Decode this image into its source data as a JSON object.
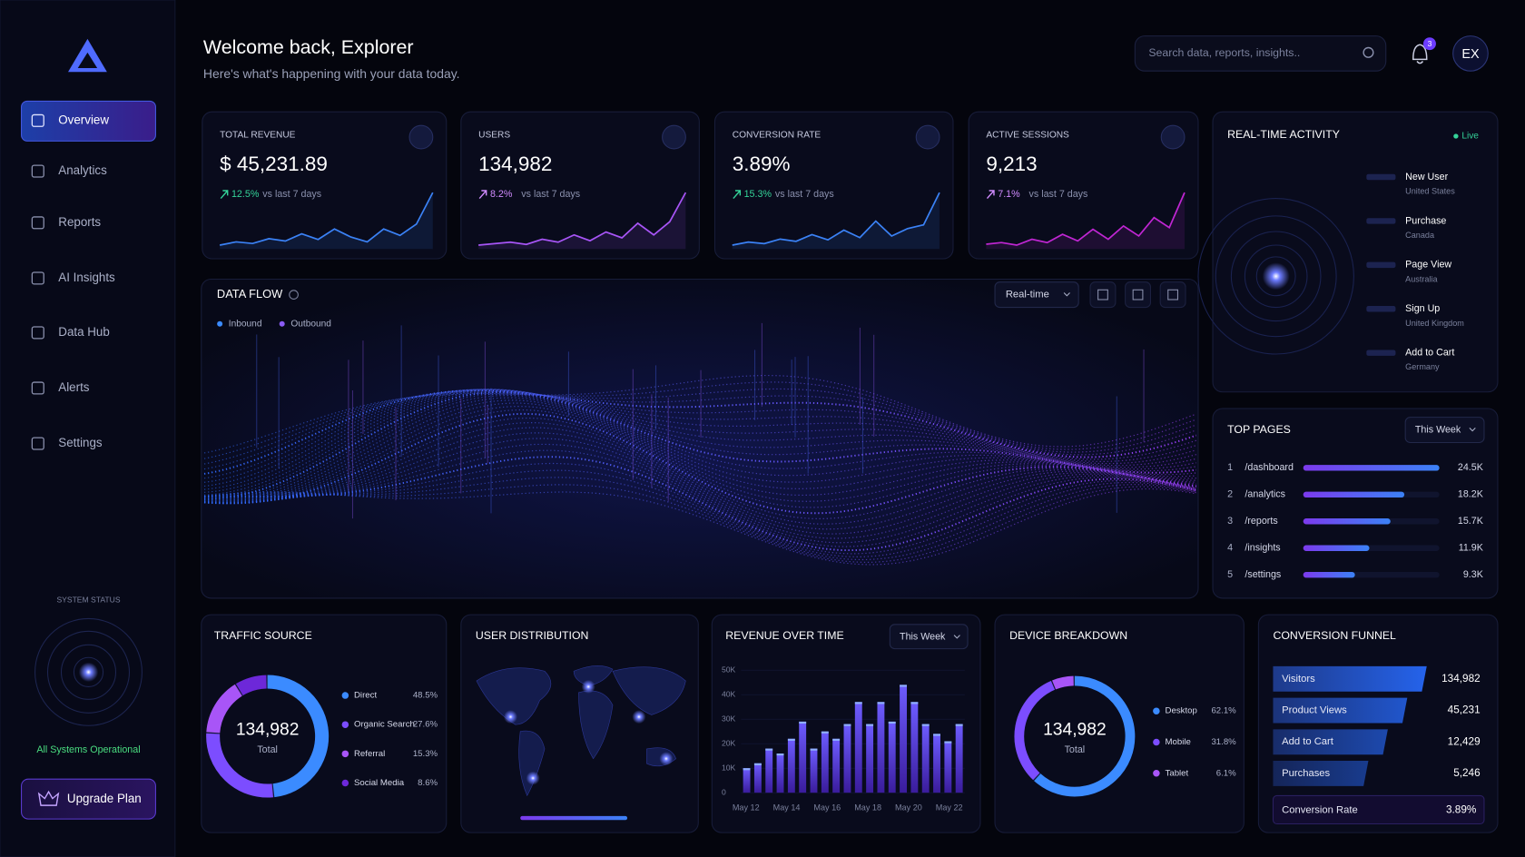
{
  "sidebar": {
    "nav": [
      "Overview",
      "Analytics",
      "Reports",
      "AI Insights",
      "Data Hub",
      "Alerts",
      "Settings"
    ],
    "status_title": "SYSTEM STATUS",
    "status_text": "All Systems Operational",
    "upgrade_button": "Upgrade Plan"
  },
  "header": {
    "title": "Welcome back, Explorer",
    "subtitle": "Here's what's happening with your data today.",
    "search_placeholder": "Search data, reports, insights..",
    "notification_count": "3",
    "avatar": "EX"
  },
  "kpis": [
    {
      "label": "TOTAL REVENUE",
      "value": "$ 45,231.89",
      "change": "12.5%",
      "change_note": "vs last 7 days",
      "color": "#3b82f6",
      "trend": [
        10,
        14,
        12,
        18,
        15,
        24,
        17,
        30,
        20,
        14,
        30,
        22,
        36,
        75
      ]
    },
    {
      "label": "USERS",
      "value": "134,982",
      "change": "8.2%",
      "change_note": "vs last 7 days",
      "color": "#a855f7",
      "trend": [
        8,
        10,
        12,
        9,
        16,
        12,
        22,
        14,
        26,
        18,
        38,
        22,
        40,
        80
      ]
    },
    {
      "label": "CONVERSION RATE",
      "value": "3.89%",
      "change": "15.3%",
      "change_note": "vs last 7 days",
      "color": "#3b82f6",
      "trend": [
        8,
        12,
        10,
        16,
        13,
        22,
        15,
        28,
        18,
        40,
        20,
        30,
        35,
        78
      ]
    },
    {
      "label": "ACTIVE SESSIONS",
      "value": "9,213",
      "change": "7.1%",
      "change_note": "vs last 7 days",
      "color": "#c026d3",
      "trend": [
        10,
        12,
        9,
        16,
        12,
        22,
        14,
        28,
        16,
        32,
        20,
        42,
        30,
        72
      ]
    }
  ],
  "activity": {
    "title": "REAL-TIME ACTIVITY",
    "status": "Live",
    "events": [
      {
        "event": "New User",
        "location": "United States"
      },
      {
        "event": "Purchase",
        "location": "Canada"
      },
      {
        "event": "Page View",
        "location": "Australia"
      },
      {
        "event": "Sign Up",
        "location": "United Kingdom"
      },
      {
        "event": "Add to Cart",
        "location": "Germany"
      }
    ]
  },
  "data_flow": {
    "title": "DATA FLOW",
    "legend": [
      "Inbound",
      "Outbound"
    ],
    "mode": "Real-time"
  },
  "top_pages": {
    "title": "TOP PAGES",
    "period": "This Week",
    "ranks": [
      "1",
      "2",
      "3",
      "4",
      "5"
    ],
    "pages": [
      "/dashboard",
      "/analytics",
      "/reports",
      "/insights",
      "/settings"
    ],
    "values": [
      24500,
      18200,
      15700,
      11900,
      9300
    ],
    "value_labels": [
      "24.5K",
      "18.2K",
      "15.7K",
      "11.9K",
      "9.3K"
    ]
  },
  "traffic_source": {
    "title": "TRAFFIC SOURCE",
    "total": "134,982",
    "total_label": "Total",
    "labels": [
      "Direct",
      "Organic Search",
      "Referral",
      "Social Media"
    ],
    "values": [
      48.5,
      27.6,
      15.3,
      8.6
    ],
    "value_labels": [
      "48.5%",
      "27.6%",
      "15.3%",
      "8.6%"
    ],
    "colors": [
      "#3b8bff",
      "#7c4dff",
      "#a855f7",
      "#6d28d9"
    ]
  },
  "user_distribution": {
    "title": "USER DISTRIBUTION"
  },
  "revenue": {
    "title": "REVENUE OVER TIME",
    "period": "This Week",
    "ylim": [
      0,
      50000
    ],
    "yticks": [
      0,
      {
        "value": 10000,
        "label": "10K"
      },
      {
        "value": 20000,
        "label": "20K"
      },
      {
        "value": 30000,
        "label": "30K"
      },
      {
        "value": 40000,
        "label": "40K"
      },
      {
        "value": 50000,
        "label": "50K"
      }
    ],
    "values": [
      10000,
      12000,
      18000,
      16000,
      22000,
      29000,
      18000,
      25000,
      22000,
      28000,
      37000,
      28000,
      37000,
      29000,
      44000,
      37000,
      28000,
      24000,
      21000,
      28000
    ],
    "xticks": [
      "May 12",
      "May 14",
      "May 16",
      "May 18",
      "May 20",
      "May 22"
    ]
  },
  "device_breakdown": {
    "title": "DEVICE BREAKDOWN",
    "total": "134,982",
    "total_label": "Total",
    "labels": [
      "Desktop",
      "Mobile",
      "Tablet"
    ],
    "values": [
      62.1,
      31.8,
      6.1
    ],
    "value_labels": [
      "62.1%",
      "31.8%",
      "6.1%"
    ],
    "colors": [
      "#3b8bff",
      "#7c4dff",
      "#a855f7"
    ]
  },
  "funnel": {
    "title": "CONVERSION FUNNEL",
    "stages": [
      "Visitors",
      "Product Views",
      "Add to Cart",
      "Purchases"
    ],
    "counts": [
      "134,982",
      "45,231",
      "12,429",
      "5,246"
    ],
    "rate_label": "Conversion Rate",
    "rate": "3.89%"
  }
}
